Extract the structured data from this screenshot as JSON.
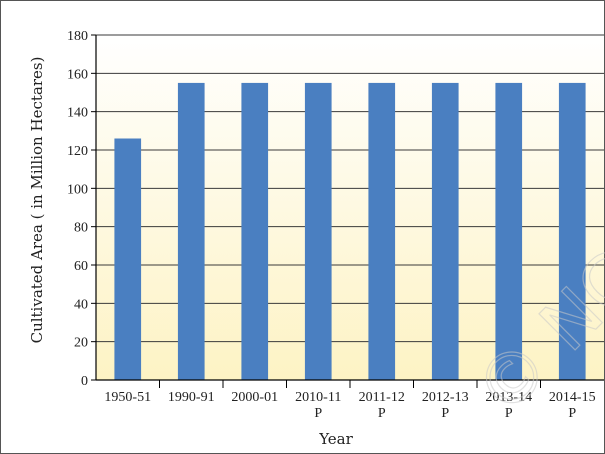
{
  "chart_data": {
    "type": "bar",
    "categories": [
      "1950-51",
      "1990-91",
      "2000-01",
      "2010-11",
      "2011-12",
      "2012-13",
      "2013-14",
      "2014-15"
    ],
    "category_sublabels": [
      "",
      "",
      "",
      "P",
      "P",
      "P",
      "P",
      "P"
    ],
    "values": [
      126,
      155,
      155,
      155,
      155,
      155,
      155,
      155
    ],
    "title": "",
    "xlabel": "Year",
    "ylabel": "Cultivated Area ( in Million Hectares)",
    "ylim": [
      0,
      180
    ],
    "yticks": [
      0,
      20,
      40,
      60,
      80,
      100,
      120,
      140,
      160,
      180
    ],
    "grid": true,
    "bar_color": "#4a7fc1",
    "background_gradient": [
      "#ffffff",
      "#fdf3c4"
    ]
  },
  "watermark": "© NCERT not to be republished"
}
